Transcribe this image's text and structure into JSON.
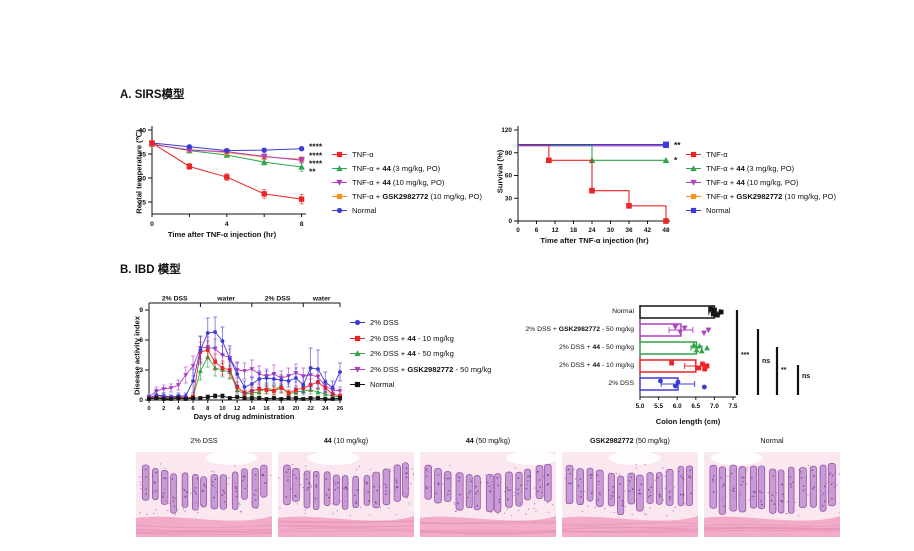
{
  "panels": {
    "a_title": "A. SIRS模型",
    "b_title": "B. IBD 模型"
  },
  "colors": {
    "red": "#ED2224",
    "green": "#2FA44A",
    "purple": "#B03FC4",
    "orange": "#F6921E",
    "blue": "#3B3BD6",
    "black": "#141414"
  },
  "chart_data": [
    {
      "id": "rectal_temperature",
      "type": "line",
      "xlabel": "Time after TNF-α injection (hr)",
      "ylabel": "Rectal temperature (℃)",
      "x": [
        0,
        2,
        4,
        6,
        8
      ],
      "xticks": [
        0,
        4,
        8
      ],
      "ylim": [
        22.5,
        40
      ],
      "yticks": [
        25,
        30,
        35,
        40
      ],
      "series": [
        {
          "name": "TNF-α + 44 (3 mg/kg, PO)",
          "color": "green",
          "marker": "triangle",
          "values": [
            37.1,
            35.7,
            34.8,
            33.3,
            32.3
          ],
          "errors": [
            0.3,
            0.3,
            0.5,
            0.6,
            0.9
          ]
        },
        {
          "name": "TNF-α + GSK2982772 (10 mg/kg, PO)",
          "color": "orange",
          "marker": "square",
          "values": [
            37.0,
            35.9,
            35.3,
            34.4,
            33.9
          ],
          "errors": [
            0.3,
            0.3,
            0.4,
            0.5,
            0.5
          ]
        },
        {
          "name": "TNF-α + 44 (10 mg/kg, PO)",
          "color": "purple",
          "marker": "triangle-down",
          "values": [
            37.0,
            35.8,
            35.5,
            34.5,
            33.7
          ],
          "errors": [
            0.3,
            0.3,
            0.4,
            0.5,
            0.6
          ]
        },
        {
          "name": "Normal",
          "color": "blue",
          "marker": "circle",
          "values": [
            37.3,
            36.5,
            35.7,
            35.8,
            36.1
          ],
          "errors": [
            0.3,
            0.3,
            0.3,
            0.3,
            0.3
          ]
        },
        {
          "name": "TNF-α",
          "color": "red",
          "marker": "square",
          "values": [
            37.3,
            32.4,
            30.2,
            26.7,
            25.6
          ],
          "errors": [
            0.4,
            0.6,
            0.7,
            0.9,
            1.0
          ]
        }
      ],
      "legend_order": [
        "TNF-α",
        "TNF-α + 44 (3 mg/kg, PO)",
        "TNF-α + 44 (10 mg/kg, PO)",
        "TNF-α + GSK2982772 (10 mg/kg, PO)",
        "Normal"
      ],
      "annotations": [
        {
          "text": "****",
          "at": 36.5
        },
        {
          "text": "****",
          "at": 34.6
        },
        {
          "text": "****",
          "at": 32.9
        },
        {
          "text": "**",
          "at": 31.3
        }
      ]
    },
    {
      "id": "survival",
      "type": "step",
      "xlabel": "Time after TNF-α injection (hr)",
      "ylabel": "Survival (%)",
      "xlim": [
        0,
        50
      ],
      "xticks": [
        0,
        6,
        12,
        18,
        24,
        30,
        36,
        42,
        48
      ],
      "ylim": [
        0,
        120
      ],
      "yticks": [
        0,
        30,
        60,
        90,
        120
      ],
      "series": [
        {
          "name": "TNF-α + GSK2982772 (10 mg/kg, PO)",
          "color": "orange",
          "marker": "square",
          "points": [
            [
              0,
              100
            ],
            [
              48,
              100
            ]
          ],
          "marker_at": []
        },
        {
          "name": "TNF-α + 44 (10 mg/kg, PO)",
          "color": "purple",
          "marker": "triangle-down",
          "points": [
            [
              0,
              100
            ],
            [
              48,
              100
            ]
          ],
          "marker_at": []
        },
        {
          "name": "TNF-α + 44 (3 mg/kg, PO)",
          "color": "green",
          "marker": "triangle",
          "points": [
            [
              0,
              100
            ],
            [
              24,
              100
            ],
            [
              24,
              80
            ],
            [
              48,
              80
            ]
          ],
          "marker_at": [
            [
              24,
              80
            ],
            [
              48,
              80
            ]
          ]
        },
        {
          "name": "TNF-α",
          "color": "red",
          "marker": "square",
          "points": [
            [
              0,
              100
            ],
            [
              10,
              100
            ],
            [
              10,
              80
            ],
            [
              24,
              80
            ],
            [
              24,
              40
            ],
            [
              36,
              40
            ],
            [
              36,
              20
            ],
            [
              48,
              20
            ],
            [
              48,
              0
            ]
          ],
          "marker_at": [
            [
              10,
              80
            ],
            [
              24,
              40
            ],
            [
              36,
              20
            ],
            [
              48,
              0
            ]
          ]
        },
        {
          "name": "Normal",
          "color": "blue",
          "marker": "square",
          "points": [
            [
              0,
              100
            ],
            [
              48,
              100
            ]
          ],
          "marker_at": [
            [
              48,
              100
            ]
          ]
        }
      ],
      "legend_order": [
        "TNF-α",
        "TNF-α + 44 (3 mg/kg, PO)",
        "TNF-α + 44 (10 mg/kg, PO)",
        "TNF-α + GSK2982772 (10 mg/kg, PO)",
        "Normal"
      ],
      "annotations": [
        {
          "text": "**",
          "t": 49.3,
          "pct": 100
        },
        {
          "text": "*",
          "t": 49.3,
          "pct": 80
        }
      ]
    },
    {
      "id": "disease_activity_index",
      "type": "line",
      "xlabel": "Days of drug administration",
      "ylabel": "Disease activity index",
      "x": [
        0,
        1,
        2,
        3,
        4,
        5,
        6,
        7,
        8,
        9,
        10,
        11,
        12,
        13,
        14,
        15,
        16,
        17,
        18,
        19,
        20,
        21,
        22,
        23,
        24,
        25,
        26
      ],
      "xticks": [
        0,
        2,
        4,
        6,
        8,
        10,
        12,
        14,
        16,
        18,
        20,
        22,
        24,
        26
      ],
      "ylim": [
        0,
        9
      ],
      "yticks": [
        0,
        3,
        6,
        9
      ],
      "phases": [
        {
          "label": "2% DSS",
          "from": 0,
          "to": 7
        },
        {
          "label": "water",
          "from": 7,
          "to": 14
        },
        {
          "label": "2% DSS",
          "from": 14,
          "to": 21
        },
        {
          "label": "water",
          "from": 21,
          "to": 26
        }
      ],
      "series": [
        {
          "name": "2% DSS + GSK2982772 - 50 mg/kg",
          "color": "purple",
          "marker": "triangle-down",
          "values": [
            0.3,
            0.9,
            1.1,
            1.2,
            1.5,
            2.5,
            3.4,
            5.2,
            5.3,
            5.1,
            4.5,
            4.2,
            3.0,
            2.9,
            3.1,
            2.6,
            2.4,
            2.6,
            2.2,
            2.4,
            2.7,
            2.4,
            2.5,
            2.3,
            1.4,
            1.0,
            0.9
          ],
          "errors": [
            0.2,
            0.4,
            0.4,
            0.4,
            0.5,
            0.8,
            1.0,
            1.1,
            1.0,
            1.0,
            0.9,
            0.9,
            0.8,
            0.8,
            0.9,
            0.8,
            0.7,
            0.9,
            0.7,
            0.8,
            0.9,
            0.8,
            0.8,
            0.7,
            0.6,
            0.4,
            0.4
          ]
        },
        {
          "name": "2% DSS + 44 - 50 mg/kg",
          "color": "green",
          "marker": "triangle",
          "values": [
            0.2,
            0.3,
            0.2,
            0.2,
            0.3,
            0.2,
            0.3,
            2.9,
            4.3,
            3.2,
            3.0,
            2.8,
            1.0,
            0.6,
            0.7,
            0.8,
            1.2,
            1.0,
            1.4,
            0.6,
            0.8,
            0.9,
            1.0,
            0.8,
            0.6,
            0.4,
            0.3
          ],
          "errors": [
            0.1,
            0.2,
            0.1,
            0.1,
            0.2,
            0.1,
            0.2,
            0.9,
            1.0,
            0.8,
            0.7,
            0.7,
            0.4,
            0.3,
            0.3,
            0.4,
            0.5,
            0.4,
            0.6,
            0.3,
            0.3,
            0.4,
            0.4,
            0.3,
            0.3,
            0.2,
            0.2
          ]
        },
        {
          "name": "2% DSS + 44 - 10 mg/kg",
          "color": "red",
          "marker": "square",
          "values": [
            0.2,
            0.3,
            0.3,
            0.2,
            0.3,
            0.2,
            0.3,
            4.8,
            5.0,
            3.8,
            3.2,
            3.0,
            1.3,
            0.7,
            0.9,
            1.1,
            1.0,
            0.9,
            1.2,
            0.7,
            1.0,
            1.2,
            1.5,
            1.8,
            1.2,
            0.6,
            0.4
          ],
          "errors": [
            0.1,
            0.2,
            0.2,
            0.1,
            0.2,
            0.1,
            0.2,
            1.0,
            0.9,
            0.8,
            0.7,
            0.8,
            0.5,
            0.3,
            0.4,
            0.5,
            0.4,
            0.4,
            0.5,
            0.3,
            0.4,
            0.5,
            0.6,
            0.7,
            0.5,
            0.3,
            0.2
          ]
        },
        {
          "name": "2% DSS",
          "color": "blue",
          "marker": "circle",
          "values": [
            0.2,
            0.5,
            0.4,
            0.3,
            0.4,
            0.4,
            1.9,
            5.0,
            6.7,
            6.8,
            5.9,
            4.1,
            2.6,
            1.3,
            1.6,
            2.1,
            2.2,
            2.1,
            2.0,
            1.9,
            2.2,
            1.5,
            3.2,
            3.1,
            1.8,
            1.2,
            2.8
          ],
          "errors": [
            0.2,
            0.4,
            0.3,
            0.2,
            0.3,
            0.3,
            1.2,
            1.4,
            1.5,
            1.5,
            1.4,
            1.3,
            1.1,
            0.6,
            0.7,
            0.8,
            0.7,
            0.6,
            0.5,
            0.6,
            1.0,
            0.8,
            2.0,
            1.9,
            1.0,
            0.7,
            0.9
          ]
        },
        {
          "name": "Normal",
          "color": "black",
          "marker": "square",
          "values": [
            0.1,
            0.2,
            0.1,
            0.1,
            0.2,
            0.1,
            0.2,
            0.2,
            0.3,
            0.4,
            0.4,
            0.2,
            0.3,
            0.2,
            0.2,
            0.2,
            0.1,
            0.2,
            0.1,
            0.2,
            0.2,
            0.1,
            0.2,
            0.2,
            0.1,
            0.1,
            0.2
          ],
          "errors": [
            0.1,
            0.1,
            0.1,
            0.1,
            0.1,
            0.1,
            0.1,
            0.1,
            0.2,
            0.2,
            0.2,
            0.1,
            0.1,
            0.1,
            0.1,
            0.1,
            0.1,
            0.1,
            0.1,
            0.1,
            0.1,
            0.1,
            0.1,
            0.1,
            0.1,
            0.1,
            0.1
          ]
        }
      ],
      "legend_order": [
        "2% DSS",
        "2% DSS + 44 - 10 mg/kg",
        "2% DSS + 44 - 50 mg/kg",
        "2% DSS + GSK2982772 - 50 mg/kg",
        "Normal"
      ]
    },
    {
      "id": "colon_length",
      "type": "barh",
      "xlabel": "Colon length (cm)",
      "xlim": [
        5.0,
        7.5
      ],
      "xticks": [
        5.0,
        5.5,
        6.0,
        6.5,
        7.0,
        7.5
      ],
      "categories": [
        "Normal",
        "2% DSS + GSK2982772 - 50 mg/kg",
        "2% DSS + 44 - 50 mg/kg",
        "2% DSS + 44 - 10 mg/kg",
        "2% DSS"
      ],
      "bars": [
        {
          "name": "Normal",
          "color": "black",
          "marker": "square",
          "mean": 7.0,
          "err": 0.15,
          "points": [
            6.9,
            6.97,
            7.0,
            7.08,
            7.18
          ]
        },
        {
          "name": "2% DSS + GSK2982772 - 50 mg/kg",
          "color": "purple",
          "marker": "triangle-down",
          "mean": 6.1,
          "err": 0.32,
          "points": [
            5.95,
            6.08,
            6.2,
            6.72,
            6.84
          ]
        },
        {
          "name": "2% DSS + 44 - 50 mg/kg",
          "color": "green",
          "marker": "triangle",
          "mean": 6.52,
          "err": 0.15,
          "points": [
            6.45,
            6.52,
            6.6,
            6.66,
            6.8
          ]
        },
        {
          "name": "2% DSS + 44 - 10 mg/kg",
          "color": "red",
          "marker": "square",
          "mean": 6.5,
          "err": 0.3,
          "points": [
            5.85,
            6.58,
            6.68,
            6.74,
            6.8
          ]
        },
        {
          "name": "2% DSS",
          "color": "blue",
          "marker": "circle",
          "mean": 6.02,
          "err": 0.45,
          "points": [
            5.55,
            5.95,
            6.02,
            6.73
          ]
        }
      ],
      "comparisons": [
        {
          "text": "***"
        },
        {
          "text": "ns"
        },
        {
          "text": "**"
        },
        {
          "text": "ns"
        }
      ]
    }
  ],
  "histology": {
    "labels": [
      "2% DSS",
      "44 (10 mg/kg)",
      "44 (50 mg/kg)",
      "GSK2982772 (50 mg/kg)",
      "Normal"
    ]
  }
}
